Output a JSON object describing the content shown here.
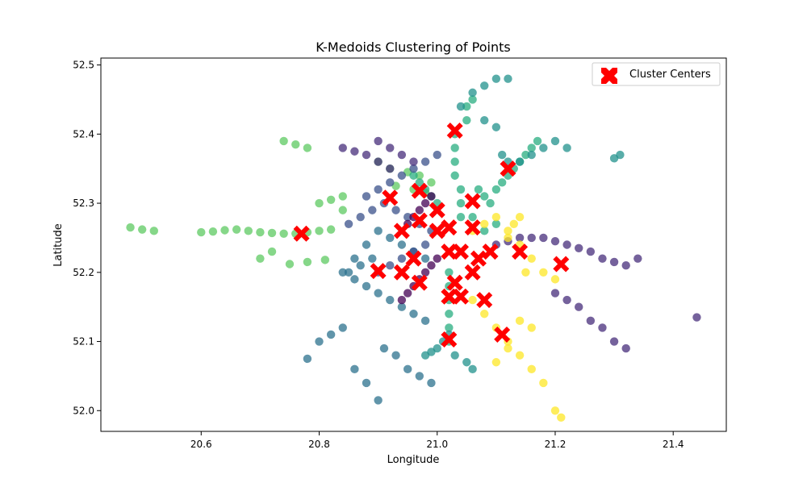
{
  "chart_data": {
    "type": "scatter",
    "title": "K-Medoids Clustering of Points",
    "xlabel": "Longitude",
    "ylabel": "Latitude",
    "xlim": [
      20.43,
      21.49
    ],
    "ylim": [
      51.97,
      52.51
    ],
    "xticks": [
      20.6,
      20.8,
      21.0,
      21.2,
      21.4
    ],
    "xtick_labels": [
      "20.6",
      "20.8",
      "21.0",
      "21.2",
      "21.4"
    ],
    "yticks": [
      52.0,
      52.1,
      52.2,
      52.3,
      52.4,
      52.5
    ],
    "ytick_labels": [
      "52.0",
      "52.1",
      "52.2",
      "52.3",
      "52.4",
      "52.5"
    ],
    "grid": false,
    "legend": {
      "placement": "top-right",
      "entries": [
        "Cluster Centers"
      ]
    },
    "colors": {
      "cluster_palette": [
        "#440154",
        "#472d7b",
        "#3b528b",
        "#2c728e",
        "#21918c",
        "#28ae80",
        "#5ec962",
        "#addc30",
        "#fde725"
      ],
      "center": "#ff0000"
    },
    "series": [
      {
        "name": "Cluster Centers",
        "marker": "X",
        "x": [
          21.03,
          21.12,
          20.97,
          21.06,
          20.92,
          21.0,
          20.97,
          20.94,
          21.02,
          21.06,
          21.0,
          20.77,
          21.09,
          21.14,
          21.02,
          21.04,
          21.07,
          20.96,
          20.9,
          20.94,
          21.21,
          20.97,
          21.03,
          21.06,
          21.02,
          21.04,
          21.08,
          21.11,
          21.02
        ],
        "y": [
          52.405,
          52.35,
          52.318,
          52.303,
          52.308,
          52.29,
          52.275,
          52.26,
          52.265,
          52.265,
          52.26,
          52.256,
          52.23,
          52.23,
          52.23,
          52.23,
          52.22,
          52.22,
          52.202,
          52.2,
          52.212,
          52.185,
          52.185,
          52.2,
          52.165,
          52.165,
          52.16,
          52.11,
          52.103
        ]
      }
    ],
    "points": [
      {
        "cluster": 6,
        "x": [
          20.48,
          20.5,
          20.52,
          20.6,
          20.62,
          20.64,
          20.66,
          20.68,
          20.7,
          20.72,
          20.74,
          20.76,
          20.78,
          20.8,
          20.82,
          20.74,
          20.76,
          20.78,
          20.8,
          20.82,
          20.84,
          20.7,
          20.72,
          20.75,
          20.78,
          20.81,
          20.84,
          20.9,
          20.92,
          20.95,
          20.97,
          20.99,
          20.93,
          20.96,
          20.98
        ],
        "y": [
          52.265,
          52.262,
          52.26,
          52.258,
          52.259,
          52.261,
          52.262,
          52.26,
          52.258,
          52.257,
          52.256,
          52.256,
          52.258,
          52.26,
          52.262,
          52.39,
          52.385,
          52.38,
          52.3,
          52.305,
          52.31,
          52.22,
          52.23,
          52.212,
          52.215,
          52.218,
          52.29,
          52.36,
          52.35,
          52.345,
          52.34,
          52.33,
          52.325,
          52.32,
          52.315
        ]
      },
      {
        "cluster": 5,
        "x": [
          21.03,
          21.03,
          21.03,
          21.03,
          21.04,
          21.04,
          21.04,
          21.05,
          21.05,
          21.06,
          21.07,
          21.08,
          21.09,
          21.1,
          21.11,
          21.12,
          21.13,
          21.14,
          21.15,
          21.16,
          21.17,
          21.0,
          20.99,
          20.98,
          20.97,
          20.96,
          21.02,
          21.02,
          21.02,
          21.02,
          21.02,
          21.02,
          21.06,
          21.08,
          21.1
        ],
        "y": [
          52.4,
          52.38,
          52.36,
          52.34,
          52.32,
          52.3,
          52.28,
          52.42,
          52.44,
          52.45,
          52.32,
          52.31,
          52.3,
          52.32,
          52.33,
          52.34,
          52.35,
          52.36,
          52.37,
          52.38,
          52.39,
          52.3,
          52.31,
          52.32,
          52.33,
          52.34,
          52.2,
          52.18,
          52.16,
          52.14,
          52.12,
          52.1,
          52.28,
          52.26,
          52.27
        ]
      },
      {
        "cluster": 4,
        "x": [
          21.04,
          21.06,
          21.08,
          21.1,
          21.12,
          21.14,
          21.16,
          21.18,
          21.2,
          21.22,
          21.08,
          21.1,
          21.11,
          21.12,
          21.3,
          21.31,
          20.98,
          20.99,
          21.0,
          21.01,
          21.02,
          21.03,
          21.05,
          21.06
        ],
        "y": [
          52.44,
          52.46,
          52.47,
          52.48,
          52.48,
          52.36,
          52.37,
          52.38,
          52.39,
          52.38,
          52.42,
          52.41,
          52.37,
          52.36,
          52.365,
          52.37,
          52.08,
          52.085,
          52.09,
          52.1,
          52.11,
          52.08,
          52.07,
          52.06
        ]
      },
      {
        "cluster": 3,
        "x": [
          20.78,
          20.8,
          20.82,
          20.84,
          20.86,
          20.88,
          20.9,
          20.84,
          20.86,
          20.88,
          20.9,
          20.92,
          20.94,
          20.96,
          20.98,
          20.86,
          20.88,
          20.9,
          20.92,
          20.94,
          20.96,
          20.98,
          20.85,
          20.87,
          20.89,
          20.91,
          20.93,
          20.95,
          20.97,
          20.99
        ],
        "y": [
          52.075,
          52.1,
          52.11,
          52.12,
          52.06,
          52.04,
          52.015,
          52.2,
          52.22,
          52.24,
          52.26,
          52.25,
          52.24,
          52.23,
          52.22,
          52.19,
          52.18,
          52.17,
          52.16,
          52.15,
          52.14,
          52.13,
          52.2,
          52.21,
          52.22,
          52.09,
          52.08,
          52.06,
          52.05,
          52.04
        ]
      },
      {
        "cluster": 2,
        "x": [
          20.85,
          20.87,
          20.89,
          20.91,
          20.93,
          20.95,
          20.97,
          20.99,
          20.88,
          20.9,
          20.92,
          20.94,
          20.96,
          20.98,
          21.0,
          20.9,
          20.92,
          20.94,
          20.96,
          20.98
        ],
        "y": [
          52.27,
          52.28,
          52.29,
          52.3,
          52.29,
          52.28,
          52.27,
          52.26,
          52.31,
          52.32,
          52.33,
          52.34,
          52.35,
          52.36,
          52.37,
          52.2,
          52.21,
          52.22,
          52.23,
          52.24
        ]
      },
      {
        "cluster": 1,
        "x": [
          20.9,
          20.92,
          20.94,
          20.96,
          21.1,
          21.12,
          21.14,
          21.16,
          21.18,
          21.2,
          21.22,
          21.24,
          21.26,
          21.28,
          21.3,
          21.32,
          21.34,
          21.2,
          21.22,
          21.24,
          21.26,
          21.28,
          21.3,
          21.32,
          21.44,
          20.88,
          20.9,
          20.92,
          20.86,
          20.84
        ],
        "y": [
          52.39,
          52.38,
          52.37,
          52.36,
          52.24,
          52.245,
          52.25,
          52.25,
          52.25,
          52.245,
          52.24,
          52.235,
          52.23,
          52.22,
          52.215,
          52.21,
          52.22,
          52.17,
          52.16,
          52.15,
          52.13,
          52.12,
          52.1,
          52.09,
          52.135,
          52.37,
          52.36,
          52.35,
          52.375,
          52.38
        ]
      },
      {
        "cluster": 0,
        "x": [
          20.94,
          20.95,
          20.96,
          20.97,
          20.98,
          20.99,
          21.0,
          20.95,
          20.96,
          20.97,
          20.98,
          20.99
        ],
        "y": [
          52.16,
          52.17,
          52.18,
          52.19,
          52.2,
          52.21,
          52.22,
          52.27,
          52.28,
          52.29,
          52.3,
          52.31
        ]
      },
      {
        "cluster": 8,
        "x": [
          21.06,
          21.08,
          21.1,
          21.12,
          21.14,
          21.16,
          21.18,
          21.2,
          21.1,
          21.12,
          21.14,
          21.16,
          21.06,
          21.08,
          21.1,
          21.12,
          21.14,
          21.16,
          21.18,
          21.2,
          21.21,
          21.12,
          21.13,
          21.14,
          21.15
        ],
        "y": [
          52.16,
          52.14,
          52.12,
          52.1,
          52.08,
          52.06,
          52.04,
          52.0,
          52.07,
          52.09,
          52.13,
          52.12,
          52.26,
          52.27,
          52.28,
          52.25,
          52.24,
          52.22,
          52.2,
          52.19,
          51.99,
          52.26,
          52.27,
          52.28,
          52.2
        ]
      }
    ]
  }
}
